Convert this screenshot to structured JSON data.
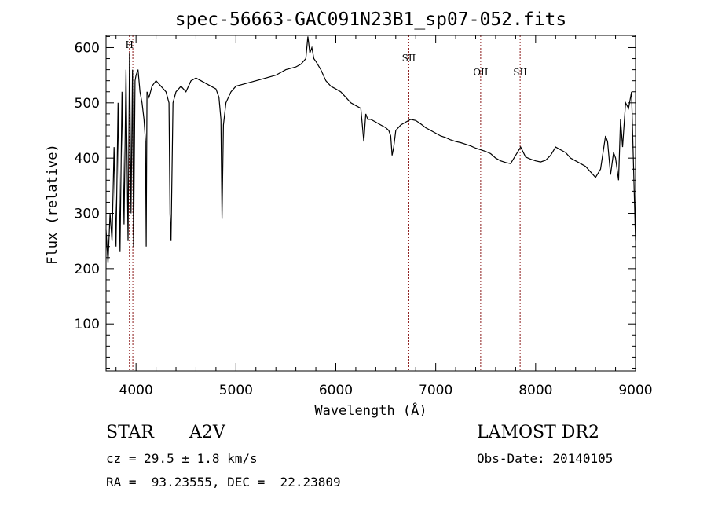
{
  "chart_data": {
    "type": "line",
    "title": "spec-56663-GAC091N23B1_sp07-052.fits",
    "xlabel": "Wavelength (Å)",
    "ylabel": "Flux (relative)",
    "xlim": [
      3700,
      9000
    ],
    "ylim": [
      15,
      622
    ],
    "xticks": [
      4000,
      5000,
      6000,
      7000,
      8000,
      9000
    ],
    "yticks": [
      100,
      200,
      300,
      400,
      500,
      600
    ],
    "grid": false,
    "series": [
      {
        "x": [
          3700,
          3720,
          3740,
          3760,
          3780,
          3800,
          3820,
          3840,
          3860,
          3880,
          3900,
          3920,
          3935,
          3950,
          3965,
          3975,
          3990,
          4000,
          4020,
          4040,
          4060,
          4080,
          4095,
          4102,
          4110,
          4130,
          4160,
          4200,
          4250,
          4300,
          4330,
          4340,
          4350,
          4370,
          4400,
          4450,
          4500,
          4550,
          4600,
          4650,
          4700,
          4750,
          4800,
          4830,
          4850,
          4861,
          4875,
          4900,
          4950,
          5000,
          5100,
          5200,
          5300,
          5400,
          5500,
          5600,
          5650,
          5700,
          5720,
          5740,
          5760,
          5780,
          5800,
          5850,
          5900,
          5950,
          6000,
          6050,
          6100,
          6150,
          6200,
          6250,
          6280,
          6300,
          6320,
          6350,
          6400,
          6450,
          6500,
          6530,
          6550,
          6563,
          6580,
          6600,
          6650,
          6700,
          6750,
          6800,
          6850,
          6900,
          6950,
          7000,
          7050,
          7100,
          7150,
          7200,
          7250,
          7300,
          7350,
          7400,
          7450,
          7500,
          7550,
          7600,
          7650,
          7700,
          7750,
          7800,
          7850,
          7900,
          7950,
          8000,
          8050,
          8100,
          8150,
          8200,
          8250,
          8300,
          8350,
          8400,
          8450,
          8500,
          8550,
          8600,
          8650,
          8700,
          8720,
          8750,
          8780,
          8800,
          8830,
          8850,
          8870,
          8900,
          8930,
          8960,
          9000
        ],
        "y": [
          270,
          210,
          300,
          250,
          420,
          240,
          500,
          230,
          520,
          280,
          560,
          250,
          590,
          300,
          560,
          240,
          540,
          550,
          560,
          520,
          500,
          470,
          430,
          240,
          520,
          510,
          530,
          540,
          530,
          520,
          500,
          300,
          250,
          500,
          520,
          530,
          520,
          540,
          545,
          540,
          535,
          530,
          525,
          510,
          470,
          290,
          460,
          500,
          520,
          530,
          535,
          540,
          545,
          550,
          560,
          565,
          570,
          580,
          620,
          590,
          600,
          580,
          575,
          560,
          540,
          530,
          525,
          520,
          510,
          500,
          495,
          490,
          430,
          480,
          470,
          470,
          465,
          460,
          455,
          450,
          440,
          405,
          420,
          450,
          460,
          465,
          470,
          468,
          462,
          455,
          450,
          445,
          440,
          437,
          433,
          430,
          428,
          425,
          422,
          418,
          415,
          412,
          408,
          400,
          395,
          392,
          390,
          405,
          420,
          402,
          398,
          395,
          393,
          396,
          405,
          420,
          415,
          410,
          400,
          395,
          390,
          385,
          375,
          365,
          380,
          440,
          430,
          370,
          410,
          400,
          360,
          470,
          420,
          500,
          490,
          520,
          250
        ]
      }
    ],
    "line_marks": [
      {
        "label": "H",
        "x": 3934
      },
      {
        "label": "",
        "x": 3968
      },
      {
        "label": "SII",
        "x": 6731
      },
      {
        "label": "OII",
        "x": 7450
      },
      {
        "label": "SII",
        "x": 7845
      }
    ]
  },
  "info": {
    "class": "STAR",
    "subclass": "A2V",
    "survey": "LAMOST DR2",
    "cz": "cz = 29.5 ± 1.8 km/s",
    "obs_date": "Obs-Date: 20140105",
    "coords": "RA =  93.23555, DEC =  22.23809"
  },
  "colors": {
    "spectrum": "#000000",
    "line_marks": "#8b1a1a"
  }
}
